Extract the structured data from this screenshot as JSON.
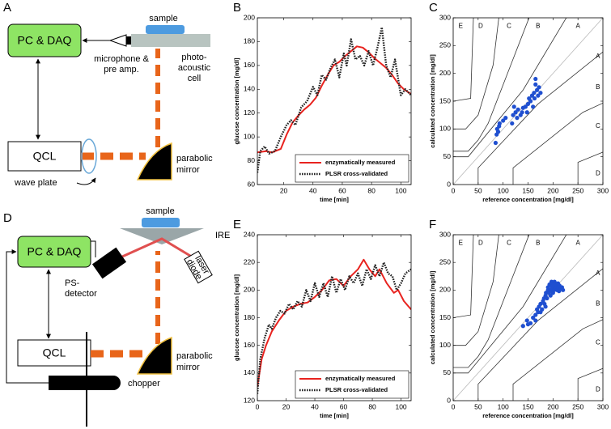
{
  "diagrams": [
    {
      "panel": "A",
      "pc": "PC & DAQ",
      "sample": "sample",
      "microphone": [
        "microphone &",
        "pre amp."
      ],
      "cell": [
        "photo-",
        "acoustic",
        "cell"
      ],
      "qcl": "QCL",
      "mirror": [
        "parabolic",
        "mirror"
      ],
      "waveplate": "wave plate"
    },
    {
      "panel": "D",
      "pc": "PC & DAQ",
      "sample": "sample",
      "ire": "IRE",
      "laser": [
        "laser",
        "diode"
      ],
      "detector": [
        "PS-",
        "detector"
      ],
      "qcl": "QCL",
      "mirror": [
        "parabolic",
        "mirror"
      ],
      "chopper": "chopper"
    }
  ],
  "chart_data": [
    {
      "type": "line",
      "panel": "B",
      "xlabel": "time [min]",
      "ylabel": "glucose concentration [mg/dl]",
      "xlim": [
        2,
        107
      ],
      "ylim": [
        60,
        200
      ],
      "xticks": [
        20,
        40,
        60,
        80,
        100
      ],
      "yticks": [
        60,
        80,
        100,
        120,
        140,
        160,
        180,
        200
      ],
      "legend": "lower right",
      "series": [
        {
          "name": "enzymatically measured",
          "color": "#e8231f",
          "style": "solid",
          "x": [
            2,
            8,
            12,
            18,
            22,
            26,
            30,
            34,
            38,
            42,
            46,
            50,
            54,
            58,
            62,
            66,
            70,
            74,
            78,
            82,
            86,
            90,
            94,
            98,
            102,
            107
          ],
          "values": [
            87,
            88,
            87,
            90,
            102,
            112,
            118,
            123,
            127,
            133,
            143,
            152,
            160,
            163,
            168,
            172,
            176,
            175,
            171,
            166,
            162,
            158,
            152,
            145,
            140,
            136
          ]
        },
        {
          "name": "PLSR cross-validated",
          "color": "#222222",
          "style": "dotted",
          "x": [
            2,
            4,
            7,
            10,
            14,
            18,
            22,
            25,
            28,
            32,
            36,
            40,
            43,
            46,
            49,
            52,
            55,
            58,
            61,
            63,
            66,
            69,
            72,
            75,
            78,
            81,
            84,
            87,
            90,
            93,
            96,
            100,
            103,
            107
          ],
          "values": [
            70,
            88,
            92,
            86,
            88,
            100,
            110,
            114,
            110,
            125,
            130,
            142,
            135,
            152,
            148,
            158,
            165,
            150,
            170,
            160,
            182,
            165,
            168,
            160,
            172,
            160,
            175,
            192,
            160,
            150,
            165,
            135,
            140,
            135
          ]
        }
      ]
    },
    {
      "type": "scatter",
      "panel": "C",
      "xlabel": "reference concentration [mg/dl]",
      "ylabel": "calculated concentration [mg/dl]",
      "xlim": [
        0,
        300
      ],
      "ylim": [
        0,
        300
      ],
      "xticks": [
        0,
        50,
        100,
        150,
        200,
        250,
        300
      ],
      "yticks": [
        0,
        50,
        100,
        150,
        200,
        250,
        300
      ],
      "zone_labels": [
        "E",
        "D",
        "C",
        "B",
        "A",
        "A",
        "B",
        "C",
        "D"
      ],
      "color": "#1f4fd0",
      "x": [
        85,
        87,
        88,
        90,
        92,
        93,
        100,
        105,
        118,
        120,
        122,
        125,
        128,
        130,
        135,
        138,
        140,
        145,
        148,
        150,
        152,
        155,
        158,
        160,
        162,
        163,
        165,
        165,
        168,
        170,
        172,
        175
      ],
      "values": [
        75,
        90,
        100,
        95,
        105,
        110,
        115,
        120,
        110,
        125,
        140,
        130,
        120,
        135,
        125,
        130,
        138,
        140,
        130,
        145,
        155,
        150,
        160,
        140,
        165,
        155,
        180,
        190,
        170,
        160,
        175,
        165
      ]
    },
    {
      "type": "line",
      "panel": "E",
      "xlabel": "time [min]",
      "ylabel": "glucose concentration [mg/dl]",
      "xlim": [
        0,
        107
      ],
      "ylim": [
        120,
        240
      ],
      "xticks": [
        0,
        20,
        40,
        60,
        80,
        100
      ],
      "yticks": [
        120,
        140,
        160,
        180,
        200,
        220,
        240
      ],
      "legend": "lower right",
      "series": [
        {
          "name": "enzymatically measured",
          "color": "#e8231f",
          "style": "solid",
          "x": [
            0,
            3,
            6,
            10,
            15,
            20,
            25,
            30,
            35,
            40,
            45,
            50,
            55,
            60,
            65,
            70,
            74,
            78,
            82,
            85,
            90,
            95,
            98,
            102,
            107
          ],
          "values": [
            130,
            150,
            160,
            170,
            178,
            185,
            188,
            190,
            191,
            195,
            200,
            207,
            208,
            203,
            210,
            215,
            222,
            215,
            210,
            215,
            205,
            198,
            200,
            192,
            186
          ]
        },
        {
          "name": "PLSR cross-validated",
          "color": "#222222",
          "style": "dotted",
          "x": [
            0,
            2,
            5,
            8,
            10,
            13,
            16,
            19,
            22,
            25,
            28,
            31,
            34,
            37,
            40,
            43,
            46,
            49,
            52,
            55,
            58,
            61,
            64,
            67,
            70,
            73,
            76,
            79,
            82,
            85,
            88,
            91,
            94,
            97,
            100,
            103,
            107
          ],
          "values": [
            125,
            150,
            165,
            175,
            172,
            180,
            185,
            183,
            190,
            186,
            192,
            188,
            200,
            192,
            205,
            195,
            205,
            195,
            210,
            198,
            208,
            200,
            210,
            205,
            212,
            203,
            215,
            208,
            218,
            210,
            220,
            212,
            210,
            200,
            205,
            212,
            215
          ]
        }
      ]
    },
    {
      "type": "scatter",
      "panel": "F",
      "xlabel": "reference concentration [mg/dl]",
      "ylabel": "calculated concentration [mg/dl]",
      "xlim": [
        0,
        300
      ],
      "ylim": [
        0,
        300
      ],
      "xticks": [
        0,
        50,
        100,
        150,
        200,
        250,
        300
      ],
      "yticks": [
        0,
        50,
        100,
        150,
        200,
        250,
        300
      ],
      "zone_labels": [
        "E",
        "D",
        "C",
        "B",
        "A",
        "A",
        "B",
        "C",
        "D"
      ],
      "color": "#1f4fd0",
      "x": [
        140,
        148,
        155,
        160,
        165,
        168,
        170,
        172,
        175,
        178,
        180,
        182,
        183,
        185,
        186,
        188,
        190,
        190,
        192,
        193,
        195,
        195,
        197,
        198,
        200,
        200,
        202,
        203,
        205,
        206,
        208,
        210,
        210,
        212,
        213,
        215,
        218,
        220,
        165,
        150,
        185,
        175
      ],
      "values": [
        135,
        145,
        140,
        150,
        155,
        165,
        160,
        170,
        175,
        165,
        180,
        185,
        175,
        190,
        195,
        185,
        200,
        205,
        195,
        210,
        200,
        190,
        215,
        205,
        210,
        195,
        200,
        215,
        205,
        210,
        200,
        205,
        212,
        198,
        208,
        203,
        205,
        200,
        145,
        138,
        170,
        160
      ]
    }
  ]
}
